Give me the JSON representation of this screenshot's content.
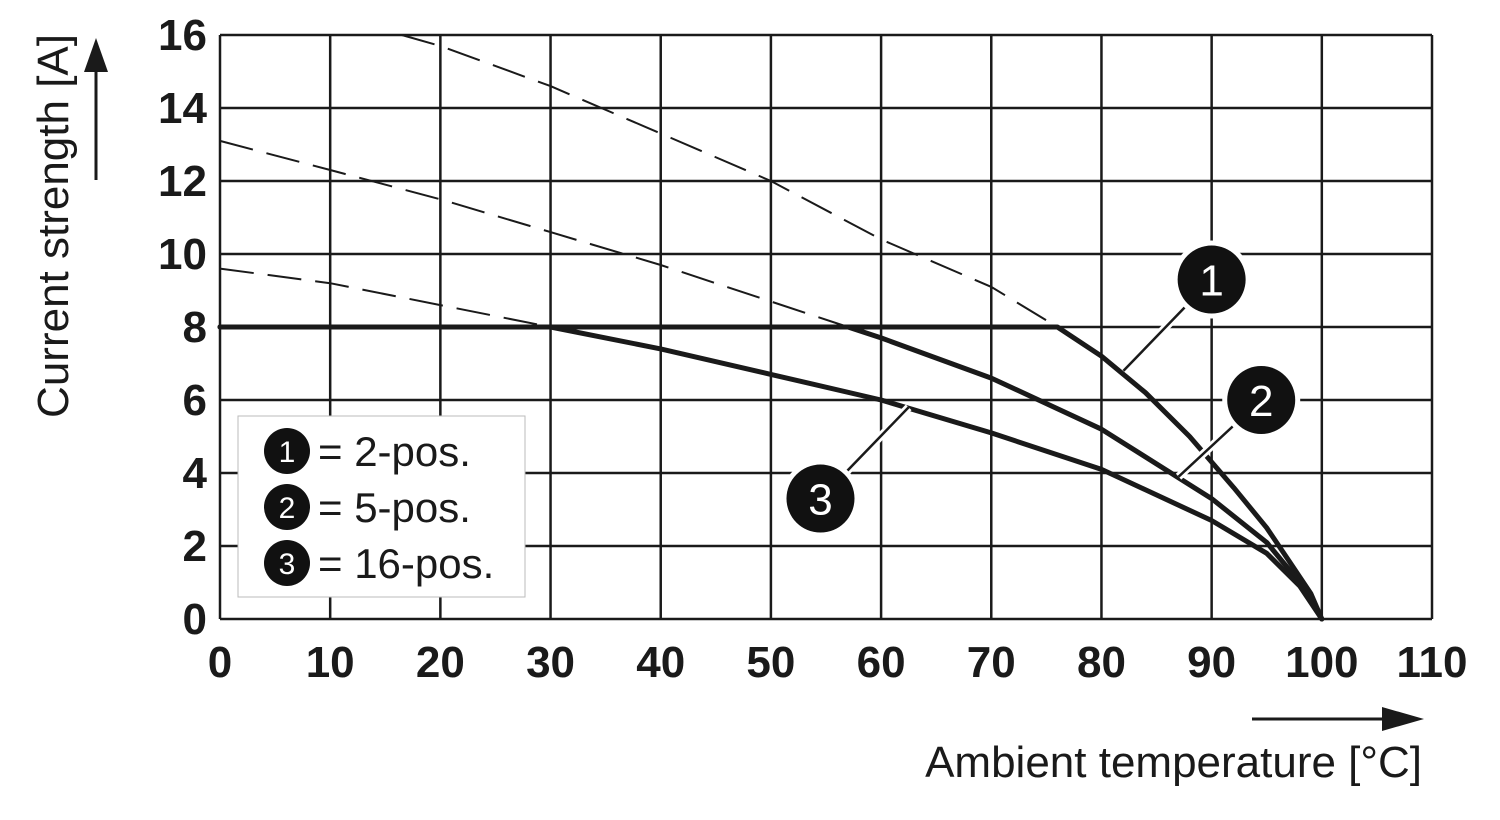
{
  "chart_data": {
    "type": "line",
    "xlabel": "Ambient temperature [°C]",
    "ylabel": "Current strength [A]",
    "xlim": [
      0,
      110
    ],
    "ylim": [
      0,
      16
    ],
    "x_ticks": [
      0,
      10,
      20,
      30,
      40,
      50,
      60,
      70,
      80,
      90,
      100,
      110
    ],
    "y_ticks": [
      0,
      2,
      4,
      6,
      8,
      10,
      12,
      14,
      16
    ],
    "grid": true,
    "legend_position": "bottom-left",
    "series": [
      {
        "marker": "1",
        "name": "2-pos.",
        "derating": [
          [
            0,
            8
          ],
          [
            76,
            8
          ],
          [
            80,
            7.2
          ],
          [
            84,
            6.2
          ],
          [
            88,
            5.0
          ],
          [
            92,
            3.6
          ],
          [
            95,
            2.5
          ],
          [
            97,
            1.6
          ],
          [
            99,
            0.7
          ],
          [
            100,
            0
          ]
        ],
        "theoretical": [
          [
            16.5,
            16
          ],
          [
            20,
            15.7
          ],
          [
            30,
            14.6
          ],
          [
            40,
            13.3
          ],
          [
            50,
            12.0
          ],
          [
            60,
            10.4
          ],
          [
            70,
            9.1
          ],
          [
            76,
            8
          ]
        ]
      },
      {
        "marker": "2",
        "name": "5-pos.",
        "derating": [
          [
            0,
            8
          ],
          [
            57,
            8
          ],
          [
            60,
            7.7
          ],
          [
            70,
            6.6
          ],
          [
            80,
            5.2
          ],
          [
            90,
            3.3
          ],
          [
            95,
            2.1
          ],
          [
            98,
            1.0
          ],
          [
            100,
            0
          ]
        ],
        "theoretical": [
          [
            0,
            13.1
          ],
          [
            10,
            12.3
          ],
          [
            20,
            11.5
          ],
          [
            30,
            10.6
          ],
          [
            40,
            9.7
          ],
          [
            50,
            8.7
          ],
          [
            57,
            8
          ]
        ]
      },
      {
        "marker": "3",
        "name": "16-pos.",
        "derating": [
          [
            0,
            8
          ],
          [
            30,
            8
          ],
          [
            40,
            7.4
          ],
          [
            50,
            6.7
          ],
          [
            60,
            6.0
          ],
          [
            70,
            5.1
          ],
          [
            80,
            4.1
          ],
          [
            90,
            2.7
          ],
          [
            95,
            1.8
          ],
          [
            98,
            0.9
          ],
          [
            100,
            0
          ]
        ],
        "theoretical": [
          [
            0,
            9.6
          ],
          [
            10,
            9.2
          ],
          [
            20,
            8.6
          ],
          [
            30,
            8
          ]
        ]
      }
    ],
    "legend": [
      {
        "marker": "1",
        "label": "= 2-pos."
      },
      {
        "marker": "2",
        "label": "= 5-pos."
      },
      {
        "marker": "3",
        "label": "= 16-pos."
      }
    ],
    "callouts": [
      {
        "marker": "1",
        "at": [
          82,
          6.8
        ],
        "bubble": [
          90,
          9.3
        ]
      },
      {
        "marker": "2",
        "at": [
          87,
          3.9
        ],
        "bubble": [
          94.5,
          6.0
        ]
      },
      {
        "marker": "3",
        "at": [
          62.5,
          5.8
        ],
        "bubble": [
          54.5,
          3.3
        ]
      }
    ],
    "colors": {
      "line": "#1a1a1a",
      "grid": "#1a1a1a",
      "marker_fill": "#111111",
      "marker_text": "#ffffff",
      "background": "#ffffff"
    }
  }
}
